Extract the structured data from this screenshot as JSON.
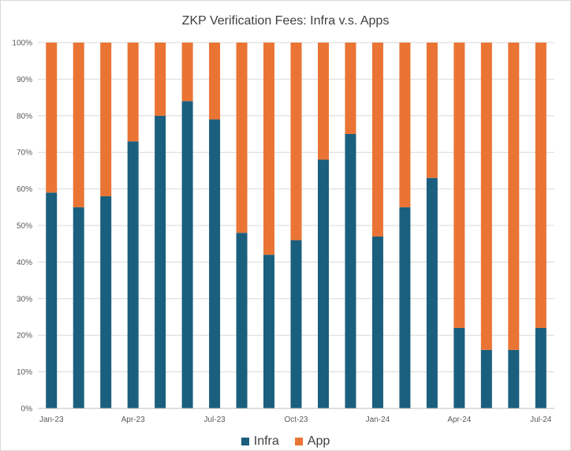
{
  "chart_data": {
    "type": "bar",
    "stacked": "percent",
    "title": "ZKP Verification Fees: Infra v.s. Apps",
    "categories": [
      "Jan-23",
      "Feb-23",
      "Mar-23",
      "Apr-23",
      "May-23",
      "Jun-23",
      "Jul-23",
      "Aug-23",
      "Sep-23",
      "Oct-23",
      "Nov-23",
      "Dec-23",
      "Jan-24",
      "Feb-24",
      "Mar-24",
      "Apr-24",
      "May-24",
      "Jun-24",
      "Jul-24"
    ],
    "x_tick_labels": [
      "Jan-23",
      "",
      "",
      "Apr-23",
      "",
      "",
      "Jul-23",
      "",
      "",
      "Oct-23",
      "",
      "",
      "Jan-24",
      "",
      "",
      "Apr-24",
      "",
      "",
      "Jul-24"
    ],
    "series": [
      {
        "name": "Infra",
        "color": "#1a5f7e",
        "values": [
          59,
          55,
          58,
          73,
          80,
          84,
          79,
          48,
          42,
          46,
          68,
          75,
          47,
          55,
          63,
          22,
          16,
          16,
          22
        ]
      },
      {
        "name": "App",
        "color": "#ea7434",
        "values": [
          41,
          45,
          42,
          27,
          20,
          16,
          21,
          52,
          58,
          54,
          32,
          25,
          53,
          45,
          37,
          78,
          84,
          84,
          78
        ]
      }
    ],
    "y_tick_labels": [
      "0%",
      "10%",
      "20%",
      "30%",
      "40%",
      "50%",
      "60%",
      "70%",
      "80%",
      "90%",
      "100%"
    ],
    "ylim": [
      0,
      100
    ],
    "grid": true,
    "legend_position": "bottom"
  }
}
